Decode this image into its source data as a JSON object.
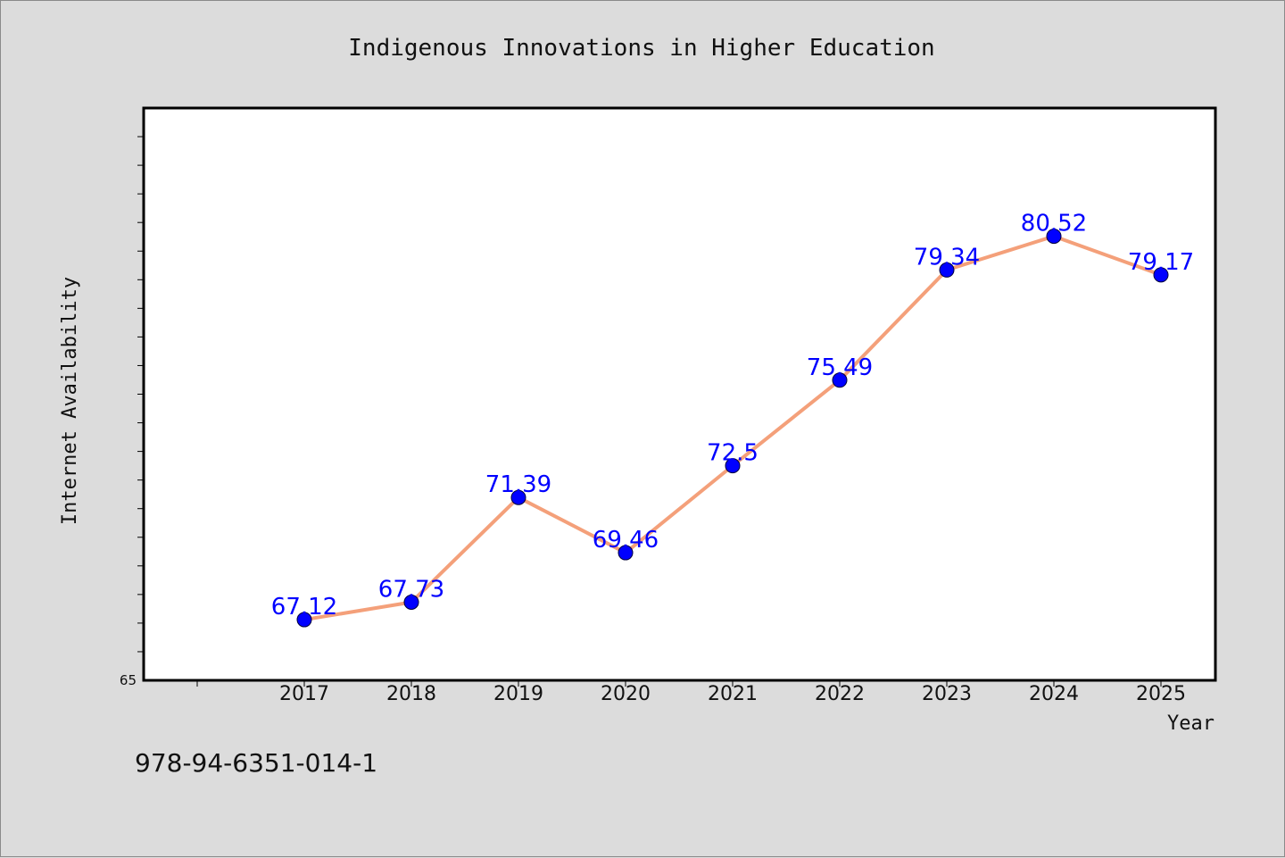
{
  "chart_data": {
    "type": "line",
    "title": "Indigenous Innovations in Higher Education",
    "xlabel": "Year",
    "ylabel": "Internet Availability",
    "x": [
      "2017",
      "2018",
      "2019",
      "2020",
      "2021",
      "2022",
      "2023",
      "2024",
      "2025"
    ],
    "series": [
      {
        "values": [
          67.12,
          67.73,
          71.39,
          69.46,
          72.5,
          75.49,
          79.34,
          80.52,
          79.17
        ],
        "data_labels": [
          "67.12",
          "67.73",
          "71.39",
          "69.46",
          "72.5",
          "75.49",
          "79.34",
          "80.52",
          "79.17"
        ]
      }
    ],
    "ylim": [
      65,
      85
    ],
    "y_tick_labels": [
      "65"
    ],
    "grid": false,
    "line_color": "#f4a07a",
    "marker_color": "#0000ff",
    "label_color": "#0000ff"
  },
  "footer": {
    "isbn": "978-94-6351-014-1"
  }
}
